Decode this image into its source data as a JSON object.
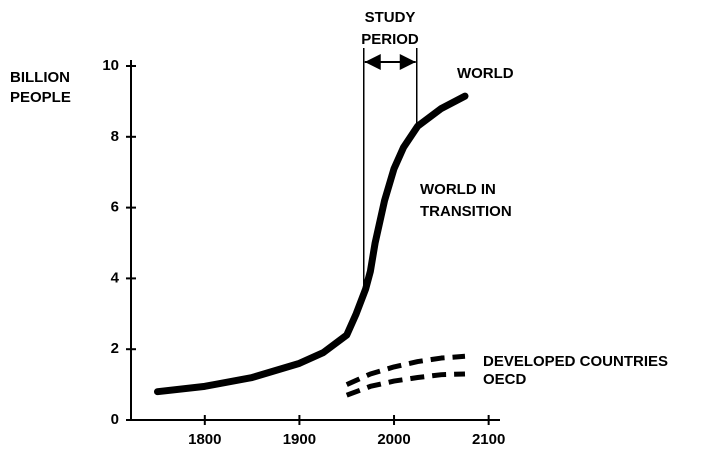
{
  "chart_data": {
    "type": "line",
    "ylabel": [
      "BILLION",
      "PEOPLE"
    ],
    "xlim": [
      1722,
      2112
    ],
    "ylim": [
      0,
      10
    ],
    "xticks": [
      1800,
      1900,
      2000,
      2100
    ],
    "yticks": [
      0,
      2,
      4,
      6,
      8,
      10
    ],
    "study_period": {
      "label": [
        "STUDY",
        "PERIOD"
      ],
      "x": [
        1968,
        2024
      ]
    },
    "annotations": [
      {
        "text": [
          "WORLD IN",
          "TRANSITION"
        ]
      }
    ],
    "series": [
      {
        "name": "WORLD",
        "color": "#000000",
        "dash": false,
        "x": [
          1750,
          1800,
          1850,
          1900,
          1925,
          1950,
          1960,
          1970,
          1975,
          1980,
          1990,
          2000,
          2010,
          2025,
          2050,
          2075
        ],
        "values": [
          0.8,
          0.95,
          1.2,
          1.6,
          1.9,
          2.4,
          3.0,
          3.7,
          4.2,
          5.0,
          6.2,
          7.1,
          7.7,
          8.3,
          8.8,
          9.15
        ]
      },
      {
        "name": "DEVELOPED COUNTRIES",
        "color": "#000000",
        "dash": true,
        "x": [
          1950,
          1975,
          2000,
          2025,
          2050,
          2075
        ],
        "values": [
          1.0,
          1.3,
          1.5,
          1.65,
          1.75,
          1.8
        ]
      },
      {
        "name": "OECD",
        "color": "#000000",
        "dash": true,
        "x": [
          1950,
          1975,
          2000,
          2025,
          2050,
          2075
        ],
        "values": [
          0.7,
          0.95,
          1.1,
          1.2,
          1.28,
          1.3
        ]
      }
    ]
  }
}
